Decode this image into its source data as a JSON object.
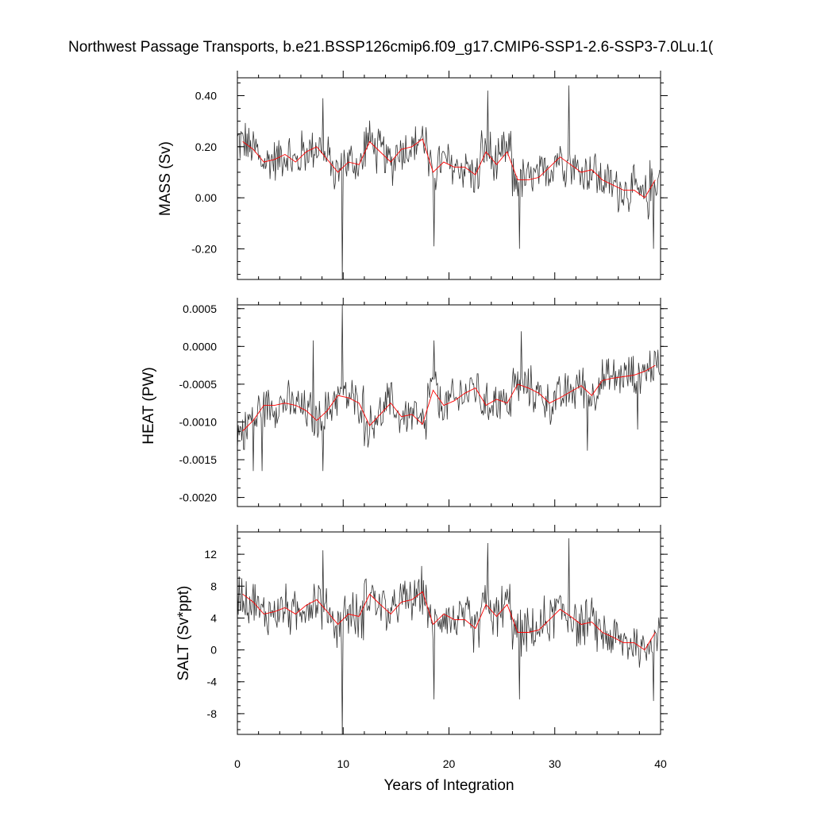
{
  "figure": {
    "title": "Northwest Passage Transports, b.e21.BSSP126cmip6.f09_g17.CMIP6-SSP1-2.6-SSP3-7.0Lu.1("
  },
  "chart_data": [
    {
      "type": "line",
      "panel": "mass",
      "ylabel": "MASS (Sv)",
      "xlabel": "",
      "xlim": [
        0,
        40
      ],
      "ylim": [
        -0.32,
        0.47
      ],
      "yticks": [
        0.4,
        0.2,
        0.0,
        -0.2
      ],
      "ytick_labels": [
        "0.40",
        "0.20",
        "0.00",
        "-0.20"
      ],
      "xticks": [
        0,
        10,
        20,
        30,
        40
      ],
      "colors": {
        "monthly": "#333333",
        "annual": "#ff0000"
      },
      "x_annual": [
        0.5,
        1.5,
        2.5,
        3.5,
        4.5,
        5.5,
        6.5,
        7.5,
        8.5,
        9.5,
        10.5,
        11.5,
        12.5,
        13.5,
        14.5,
        15.5,
        16.5,
        17.5,
        18.5,
        19.5,
        20.5,
        21.5,
        22.5,
        23.5,
        24.5,
        25.5,
        26.5,
        27.5,
        28.5,
        29.5,
        30.5,
        31.5,
        32.5,
        33.5,
        34.5,
        35.5,
        36.5,
        37.5,
        38.5,
        39.5
      ],
      "annual": [
        0.22,
        0.19,
        0.14,
        0.15,
        0.17,
        0.14,
        0.18,
        0.2,
        0.15,
        0.1,
        0.14,
        0.13,
        0.22,
        0.18,
        0.14,
        0.19,
        0.2,
        0.23,
        0.1,
        0.14,
        0.12,
        0.12,
        0.09,
        0.18,
        0.13,
        0.18,
        0.07,
        0.07,
        0.08,
        0.12,
        0.16,
        0.13,
        0.1,
        0.11,
        0.07,
        0.05,
        0.03,
        0.03,
        0.0,
        0.07
      ],
      "monthly_base": [
        0.22,
        0.19,
        0.14,
        0.15,
        0.17,
        0.14,
        0.18,
        0.2,
        0.15,
        0.1,
        0.14,
        0.13,
        0.22,
        0.18,
        0.14,
        0.19,
        0.2,
        0.23,
        0.1,
        0.14,
        0.12,
        0.12,
        0.09,
        0.18,
        0.13,
        0.18,
        0.07,
        0.07,
        0.08,
        0.12,
        0.16,
        0.13,
        0.1,
        0.11,
        0.07,
        0.05,
        0.03,
        0.03,
        0.0,
        0.07
      ],
      "noise_amplitude": 0.09,
      "spikes": [
        [
          9.92,
          -0.32
        ],
        [
          31.3,
          0.44
        ],
        [
          23.7,
          0.42
        ],
        [
          8.1,
          0.39
        ],
        [
          18.6,
          -0.19
        ],
        [
          26.7,
          -0.2
        ],
        [
          39.3,
          -0.2
        ]
      ]
    },
    {
      "type": "line",
      "panel": "heat",
      "ylabel": "HEAT (PW)",
      "xlabel": "",
      "xlim": [
        0,
        40
      ],
      "ylim": [
        -0.00212,
        0.00055
      ],
      "yticks": [
        0.0005,
        0.0,
        -0.0005,
        -0.001,
        -0.0015,
        -0.002
      ],
      "ytick_labels": [
        "0.0005",
        "0.0000",
        "-0.0005",
        "-0.0010",
        "-0.0015",
        "-0.0020"
      ],
      "xticks": [
        0,
        10,
        20,
        30,
        40
      ],
      "colors": {
        "monthly": "#333333",
        "annual": "#ff0000"
      },
      "x_annual": [
        0.5,
        1.5,
        2.5,
        3.5,
        4.5,
        5.5,
        6.5,
        7.5,
        8.5,
        9.5,
        10.5,
        11.5,
        12.5,
        13.5,
        14.5,
        15.5,
        16.5,
        17.5,
        18.5,
        19.5,
        20.5,
        21.5,
        22.5,
        23.5,
        24.5,
        25.5,
        26.5,
        27.5,
        28.5,
        29.5,
        30.5,
        31.5,
        32.5,
        33.5,
        34.5,
        35.5,
        36.5,
        37.5,
        38.5,
        39.5
      ],
      "annual": [
        -0.00112,
        -0.00098,
        -0.00078,
        -0.00078,
        -0.00075,
        -0.00078,
        -0.00085,
        -0.00098,
        -0.00085,
        -0.00065,
        -0.00068,
        -0.00075,
        -0.00105,
        -0.0009,
        -0.00075,
        -0.00093,
        -0.0009,
        -0.00103,
        -0.00058,
        -0.00078,
        -0.00072,
        -0.00062,
        -0.00055,
        -0.00078,
        -0.0007,
        -0.00075,
        -0.0005,
        -0.00055,
        -0.00062,
        -0.00075,
        -0.00068,
        -0.0006,
        -0.00052,
        -0.00065,
        -0.00045,
        -0.00042,
        -0.0004,
        -0.00038,
        -0.00033,
        -0.00025
      ],
      "monthly_base": [
        -0.00112,
        -0.00098,
        -0.00078,
        -0.00078,
        -0.00075,
        -0.00078,
        -0.00085,
        -0.00098,
        -0.00085,
        -0.00065,
        -0.00068,
        -0.00075,
        -0.00105,
        -0.0009,
        -0.00075,
        -0.00093,
        -0.0009,
        -0.00103,
        -0.00058,
        -0.00078,
        -0.00072,
        -0.00062,
        -0.00055,
        -0.00078,
        -0.0007,
        -0.00075,
        -0.0005,
        -0.00055,
        -0.00062,
        -0.00075,
        -0.00068,
        -0.0006,
        -0.00052,
        -0.00065,
        -0.00045,
        -0.00042,
        -0.0004,
        -0.00038,
        -0.00033,
        -0.00025
      ],
      "noise_amplitude": 0.00028,
      "spikes": [
        [
          9.95,
          0.00055
        ],
        [
          7.2,
          8e-05
        ],
        [
          18.6,
          8e-05
        ],
        [
          26.8,
          0.0002
        ],
        [
          8.1,
          -0.00165
        ],
        [
          1.5,
          -0.00165
        ],
        [
          2.3,
          -0.00165
        ],
        [
          33.1,
          -0.00138
        ],
        [
          37.8,
          -0.0011
        ]
      ]
    },
    {
      "type": "line",
      "panel": "salt",
      "ylabel": "SALT (Sv*ppt)",
      "xlabel": "Years of Integration",
      "xlim": [
        0,
        40
      ],
      "ylim": [
        -10.6,
        14.8
      ],
      "yticks": [
        12,
        8,
        4,
        0,
        -4,
        -8
      ],
      "ytick_labels": [
        "12",
        "8",
        "4",
        "0",
        "-4",
        "-8"
      ],
      "xticks": [
        0,
        10,
        20,
        30,
        40
      ],
      "xtick_labels": [
        "0",
        "10",
        "20",
        "30",
        "40"
      ],
      "colors": {
        "monthly": "#333333",
        "annual": "#ff0000"
      },
      "x_annual": [
        0.5,
        1.5,
        2.5,
        3.5,
        4.5,
        5.5,
        6.5,
        7.5,
        8.5,
        9.5,
        10.5,
        11.5,
        12.5,
        13.5,
        14.5,
        15.5,
        16.5,
        17.5,
        18.5,
        19.5,
        20.5,
        21.5,
        22.5,
        23.5,
        24.5,
        25.5,
        26.5,
        27.5,
        28.5,
        29.5,
        30.5,
        31.5,
        32.5,
        33.5,
        34.5,
        35.5,
        36.5,
        37.5,
        38.5,
        39.5
      ],
      "annual": [
        7.0,
        6.0,
        4.5,
        4.8,
        5.3,
        4.5,
        5.6,
        6.3,
        4.8,
        3.2,
        4.5,
        4.2,
        7.0,
        5.7,
        4.5,
        6.0,
        6.3,
        7.3,
        3.2,
        4.5,
        3.8,
        3.8,
        2.7,
        5.7,
        4.2,
        5.7,
        2.2,
        2.2,
        2.5,
        3.8,
        5.1,
        4.2,
        3.2,
        3.5,
        2.2,
        1.6,
        0.9,
        0.9,
        0.0,
        2.2
      ],
      "monthly_base": [
        7.0,
        6.0,
        4.5,
        4.8,
        5.3,
        4.5,
        5.6,
        6.3,
        4.8,
        3.2,
        4.5,
        4.2,
        7.0,
        5.7,
        4.5,
        6.0,
        6.3,
        7.3,
        3.2,
        4.5,
        3.8,
        3.8,
        2.7,
        5.7,
        4.2,
        5.7,
        2.2,
        2.2,
        2.5,
        3.8,
        5.1,
        4.2,
        3.2,
        3.5,
        2.2,
        1.6,
        0.9,
        0.9,
        0.0,
        2.2
      ],
      "noise_amplitude": 2.9,
      "spikes": [
        [
          9.92,
          -10.6
        ],
        [
          31.3,
          14.0
        ],
        [
          23.7,
          13.4
        ],
        [
          8.1,
          12.5
        ],
        [
          18.6,
          -6.2
        ],
        [
          26.7,
          -6.2
        ],
        [
          39.3,
          -6.4
        ]
      ]
    }
  ]
}
